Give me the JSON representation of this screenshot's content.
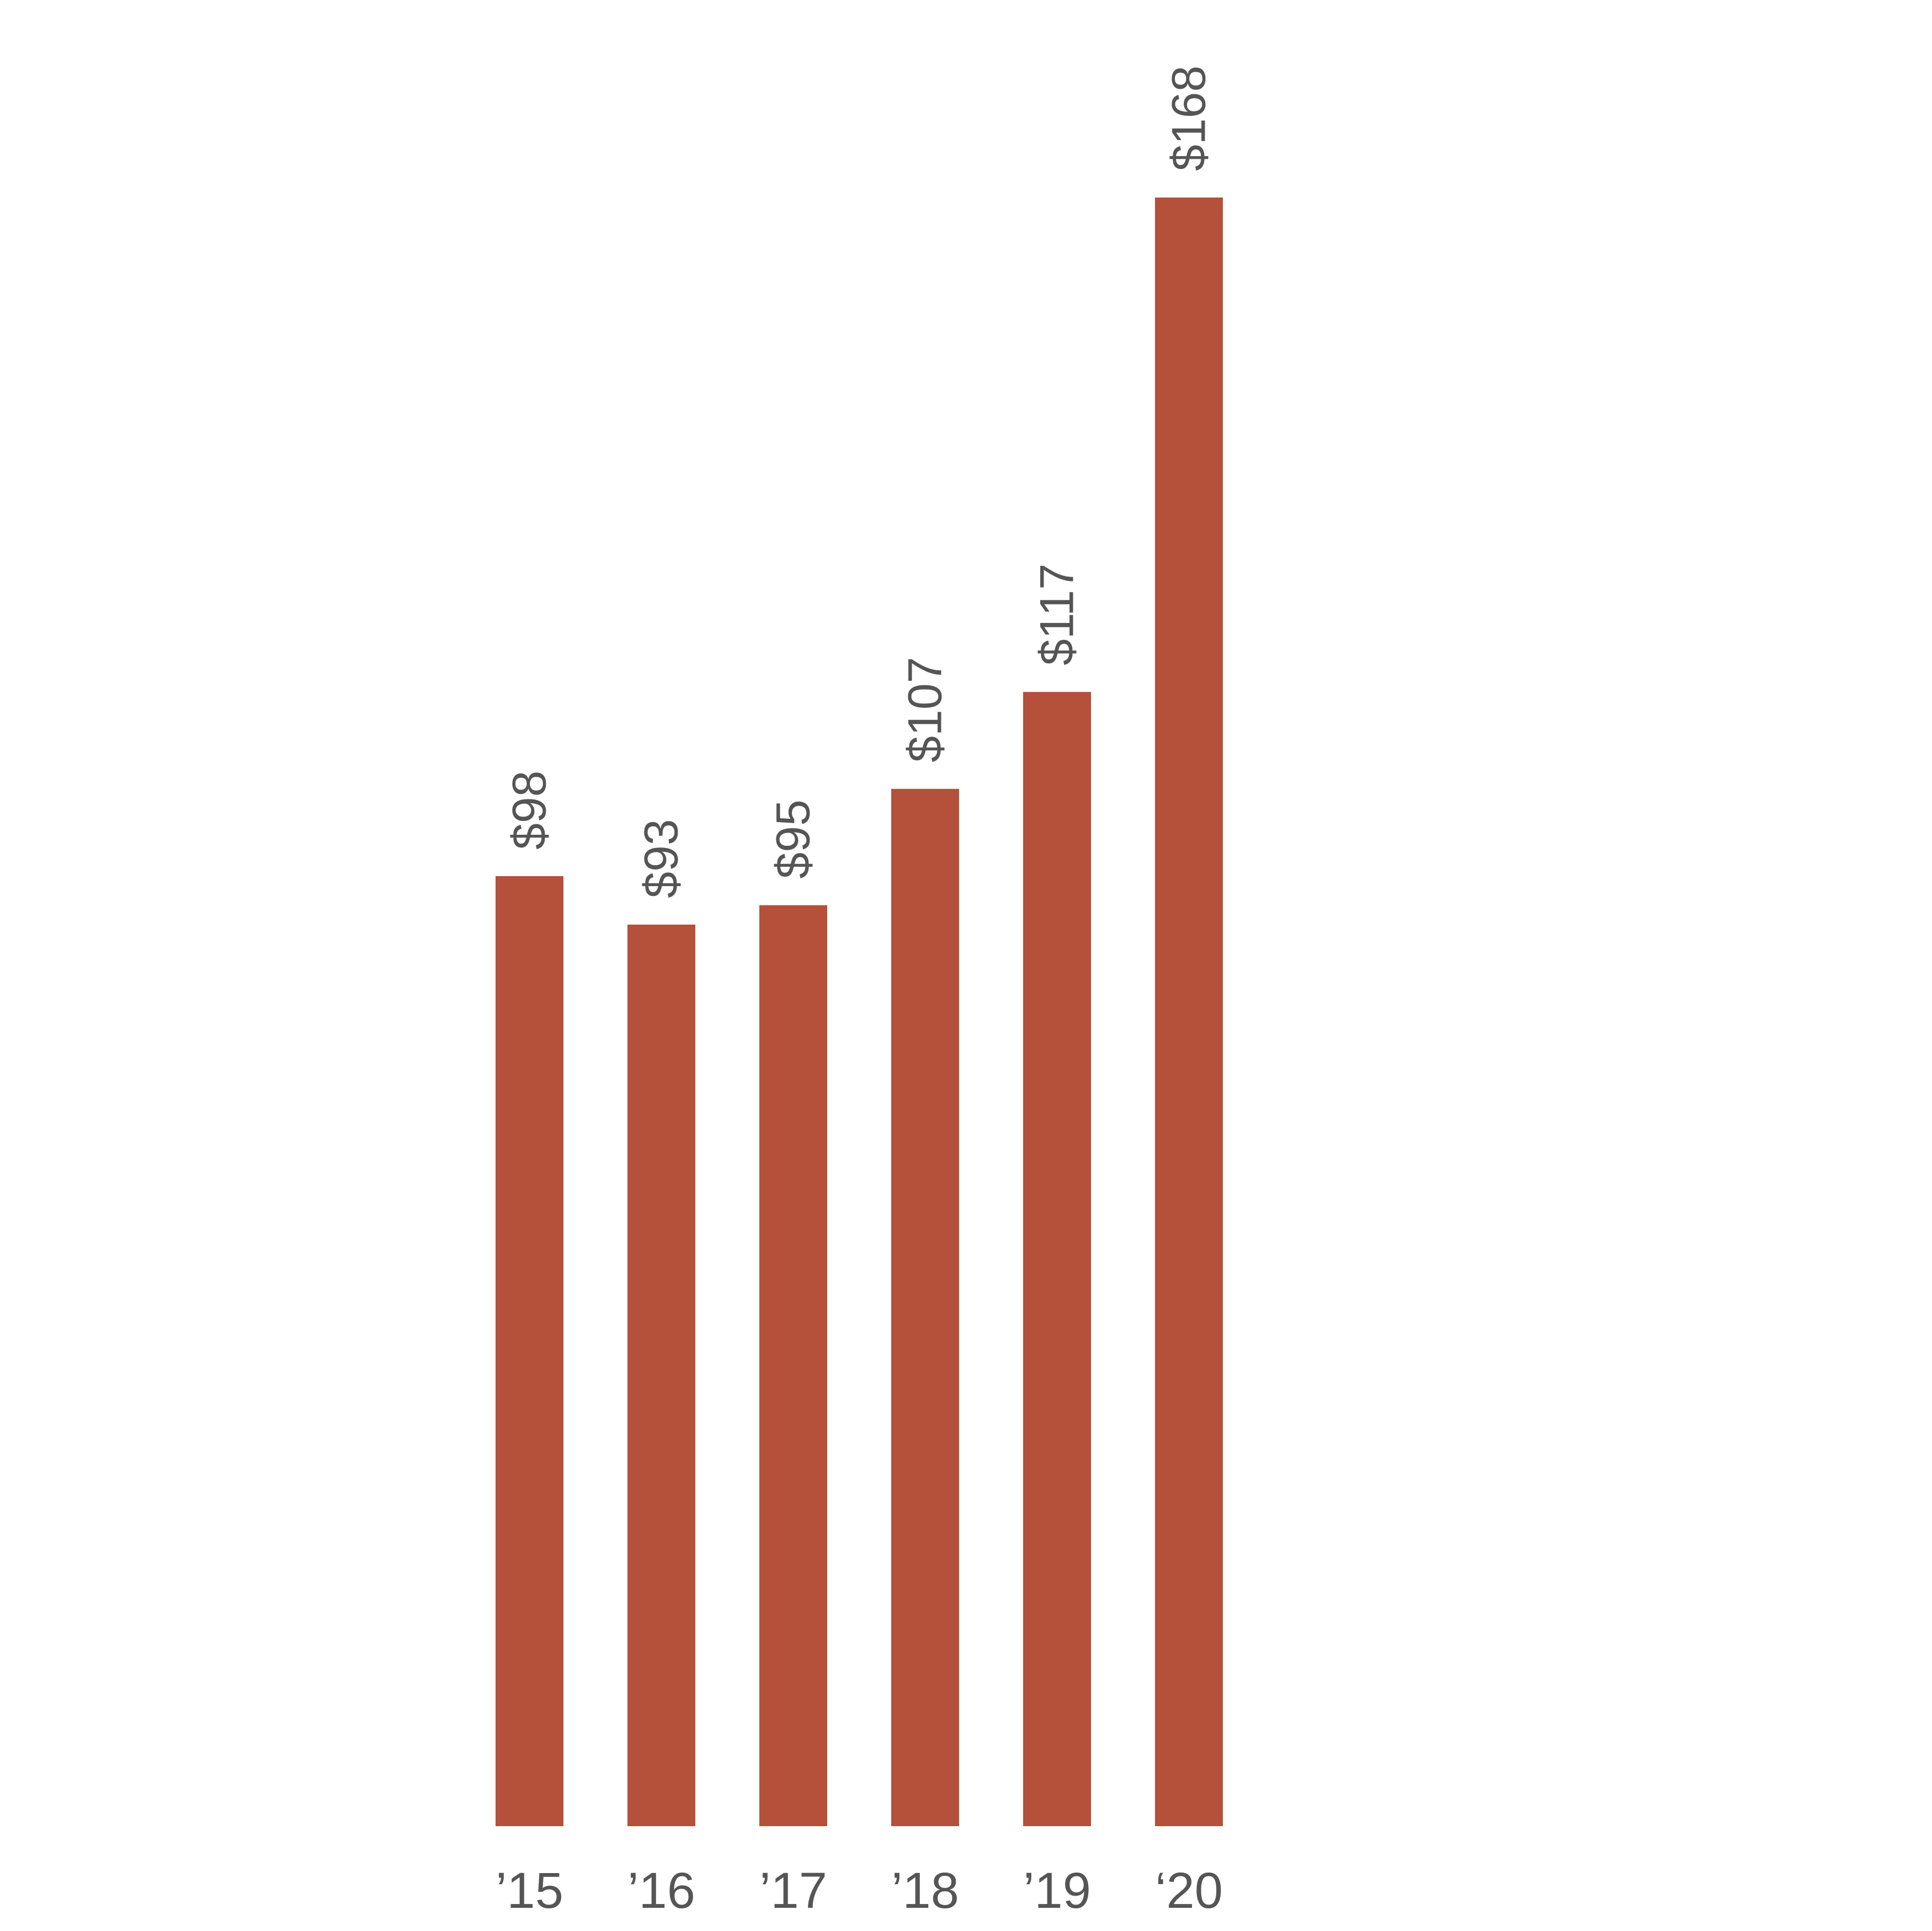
{
  "chart_data": {
    "type": "bar",
    "categories": [
      "’15",
      "’16",
      "’17",
      "’18",
      "’19",
      "‘20"
    ],
    "values": [
      98,
      93,
      95,
      107,
      117,
      168
    ],
    "value_labels": [
      "$98",
      "$93",
      "$95",
      "$107",
      "$117",
      "$168"
    ],
    "title": "",
    "xlabel": "",
    "ylabel": "",
    "ylim": [
      0,
      168
    ],
    "grid": false,
    "legend": "none",
    "bar_color": "#B5503A",
    "text_color": "#555555"
  }
}
